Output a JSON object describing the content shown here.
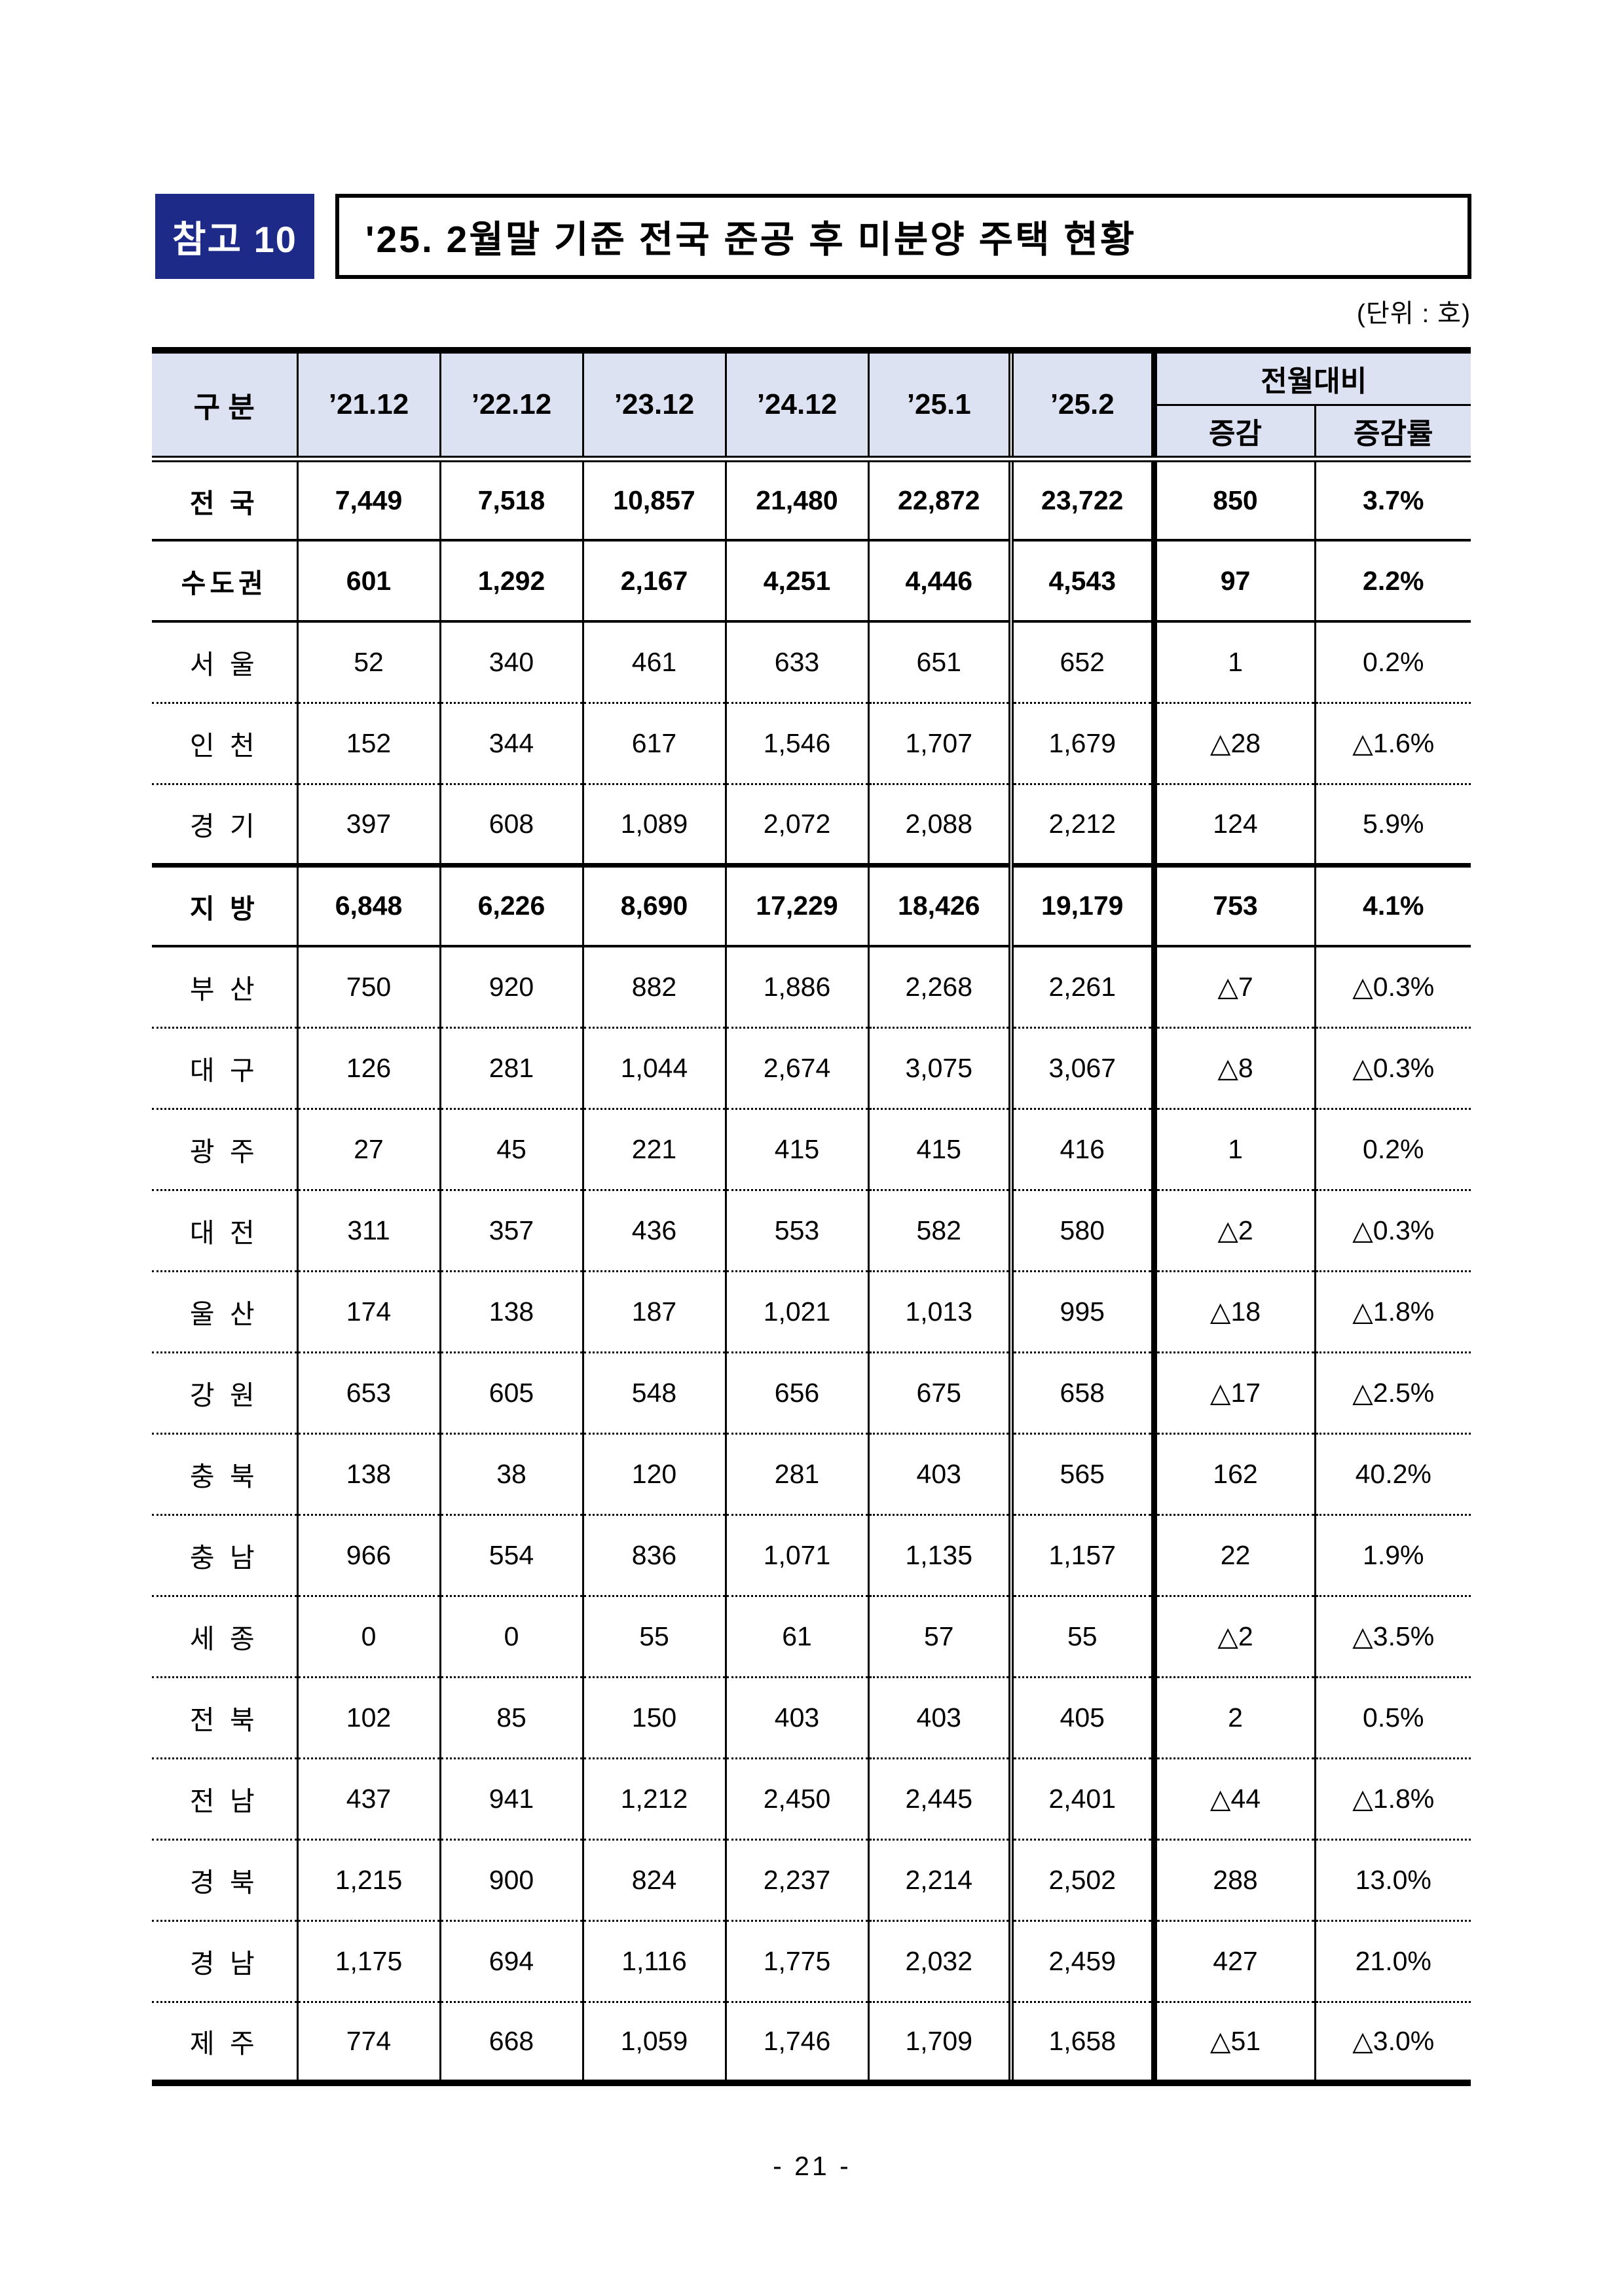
{
  "page": {
    "badge": "참고 10",
    "title": "'25. 2월말 기준 전국 준공 후 미분양 주택 현황",
    "unit_note": "(단위 : 호)",
    "page_number": "- 21 -"
  },
  "colors": {
    "badge_bg": "#1e2a87",
    "badge_text": "#ffffff",
    "header_bg": "#dde2f2",
    "border": "#000000"
  },
  "table": {
    "corner_header": "구 분",
    "period_headers": [
      "’21.12",
      "’22.12",
      "’23.12",
      "’24.12",
      "’25.1",
      "’25.2"
    ],
    "group_header": "전월대비",
    "sub_headers": [
      "증감",
      "증감률"
    ],
    "rows": [
      {
        "label": "전 국",
        "bold": true,
        "separator": "none",
        "values": [
          "7,449",
          "7,518",
          "10,857",
          "21,480",
          "22,872",
          "23,722",
          "850",
          "3.7%"
        ]
      },
      {
        "label": "수도권",
        "bold": true,
        "separator": "solid",
        "values": [
          "601",
          "1,292",
          "2,167",
          "4,251",
          "4,446",
          "4,543",
          "97",
          "2.2%"
        ]
      },
      {
        "label": "서 울",
        "bold": false,
        "separator": "solid",
        "values": [
          "52",
          "340",
          "461",
          "633",
          "651",
          "652",
          "1",
          "0.2%"
        ]
      },
      {
        "label": "인 천",
        "bold": false,
        "separator": "dotted",
        "values": [
          "152",
          "344",
          "617",
          "1,546",
          "1,707",
          "1,679",
          "△28",
          "△1.6%"
        ]
      },
      {
        "label": "경 기",
        "bold": false,
        "separator": "dotted",
        "values": [
          "397",
          "608",
          "1,089",
          "2,072",
          "2,088",
          "2,212",
          "124",
          "5.9%"
        ]
      },
      {
        "label": "지 방",
        "bold": true,
        "separator": "thick",
        "values": [
          "6,848",
          "6,226",
          "8,690",
          "17,229",
          "18,426",
          "19,179",
          "753",
          "4.1%"
        ]
      },
      {
        "label": "부 산",
        "bold": false,
        "separator": "solid",
        "values": [
          "750",
          "920",
          "882",
          "1,886",
          "2,268",
          "2,261",
          "△7",
          "△0.3%"
        ]
      },
      {
        "label": "대 구",
        "bold": false,
        "separator": "dotted",
        "values": [
          "126",
          "281",
          "1,044",
          "2,674",
          "3,075",
          "3,067",
          "△8",
          "△0.3%"
        ]
      },
      {
        "label": "광 주",
        "bold": false,
        "separator": "dotted",
        "values": [
          "27",
          "45",
          "221",
          "415",
          "415",
          "416",
          "1",
          "0.2%"
        ]
      },
      {
        "label": "대 전",
        "bold": false,
        "separator": "dotted",
        "values": [
          "311",
          "357",
          "436",
          "553",
          "582",
          "580",
          "△2",
          "△0.3%"
        ]
      },
      {
        "label": "울 산",
        "bold": false,
        "separator": "dotted",
        "values": [
          "174",
          "138",
          "187",
          "1,021",
          "1,013",
          "995",
          "△18",
          "△1.8%"
        ]
      },
      {
        "label": "강 원",
        "bold": false,
        "separator": "dotted",
        "values": [
          "653",
          "605",
          "548",
          "656",
          "675",
          "658",
          "△17",
          "△2.5%"
        ]
      },
      {
        "label": "충 북",
        "bold": false,
        "separator": "dotted",
        "values": [
          "138",
          "38",
          "120",
          "281",
          "403",
          "565",
          "162",
          "40.2%"
        ]
      },
      {
        "label": "충 남",
        "bold": false,
        "separator": "dotted",
        "values": [
          "966",
          "554",
          "836",
          "1,071",
          "1,135",
          "1,157",
          "22",
          "1.9%"
        ]
      },
      {
        "label": "세 종",
        "bold": false,
        "separator": "dotted",
        "values": [
          "0",
          "0",
          "55",
          "61",
          "57",
          "55",
          "△2",
          "△3.5%"
        ]
      },
      {
        "label": "전 북",
        "bold": false,
        "separator": "dotted",
        "values": [
          "102",
          "85",
          "150",
          "403",
          "403",
          "405",
          "2",
          "0.5%"
        ]
      },
      {
        "label": "전 남",
        "bold": false,
        "separator": "dotted",
        "values": [
          "437",
          "941",
          "1,212",
          "2,450",
          "2,445",
          "2,401",
          "△44",
          "△1.8%"
        ]
      },
      {
        "label": "경 북",
        "bold": false,
        "separator": "dotted",
        "values": [
          "1,215",
          "900",
          "824",
          "2,237",
          "2,214",
          "2,502",
          "288",
          "13.0%"
        ]
      },
      {
        "label": "경 남",
        "bold": false,
        "separator": "dotted",
        "values": [
          "1,175",
          "694",
          "1,116",
          "1,775",
          "2,032",
          "2,459",
          "427",
          "21.0%"
        ]
      },
      {
        "label": "제 주",
        "bold": false,
        "separator": "dotted",
        "values": [
          "774",
          "668",
          "1,059",
          "1,746",
          "1,709",
          "1,658",
          "△51",
          "△3.0%"
        ]
      }
    ]
  }
}
